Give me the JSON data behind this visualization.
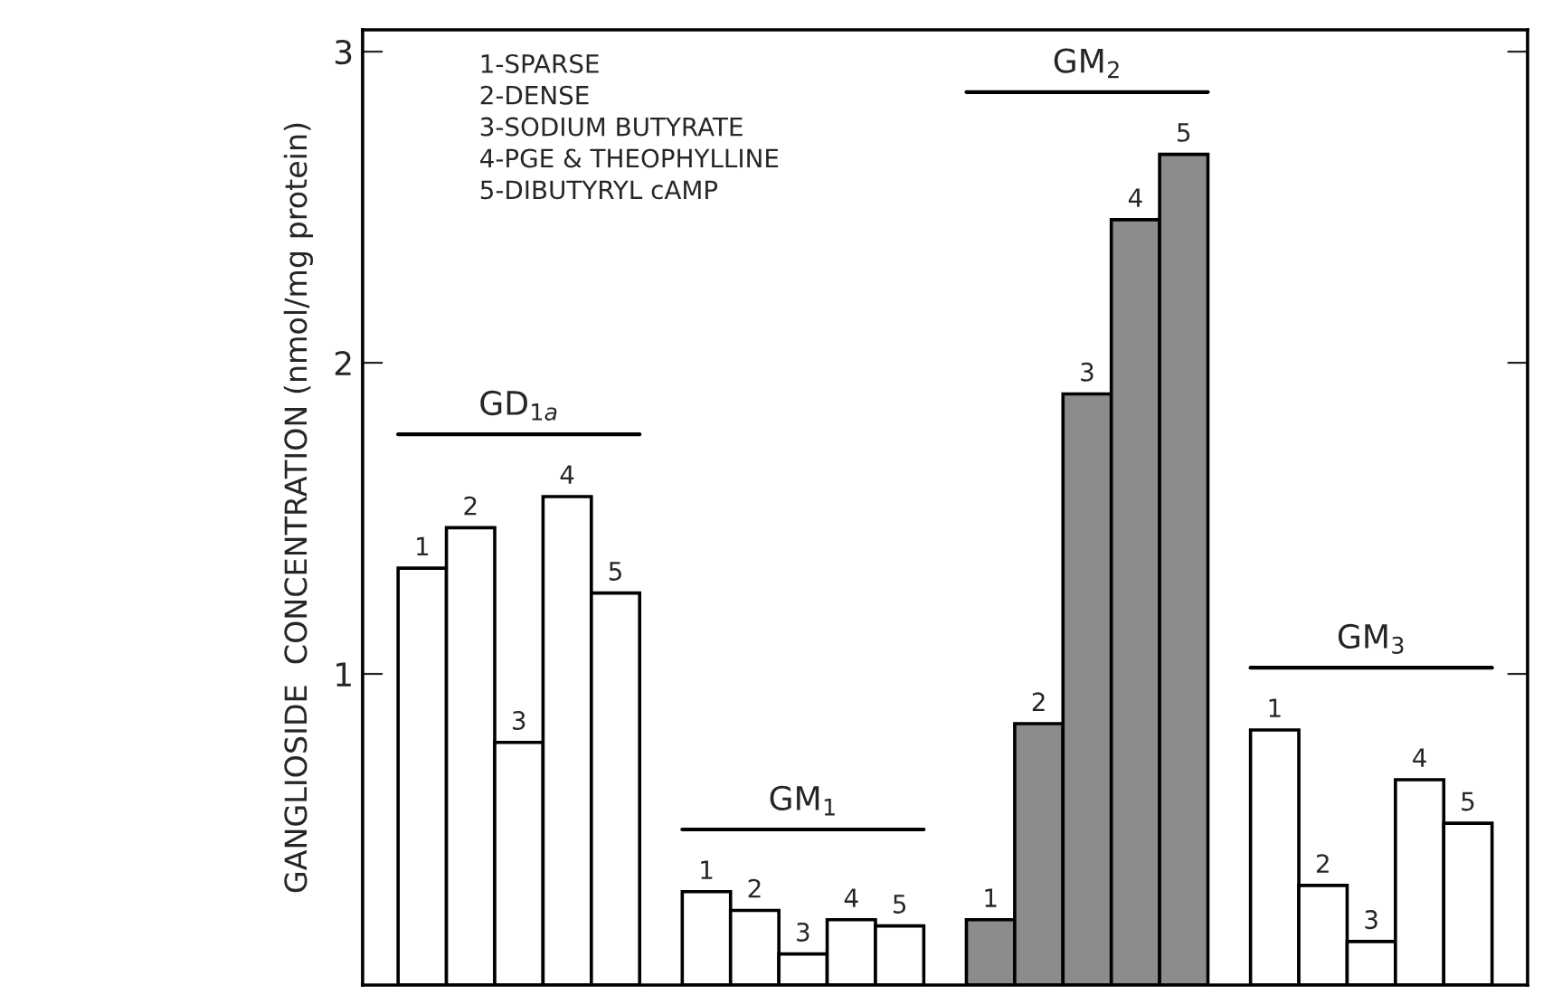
{
  "chart_data": {
    "type": "bar",
    "ylabel": "GANGLIOSIDE  CONCENTRATION (nmol/mg protein)",
    "categories": [
      "GD$_{1a}$",
      "GM$_{1}$",
      "GM$_{2}$",
      "GM$_{3}$"
    ],
    "series": [
      {
        "colors": [
          "#ffffff",
          "#ffffff",
          "#8c8c8c",
          "#ffffff"
        ],
        "values": [
          1.34,
          0.3,
          0.21,
          0.82
        ]
      },
      {
        "colors": [
          "#ffffff",
          "#ffffff",
          "#8c8c8c",
          "#ffffff"
        ],
        "values": [
          1.47,
          0.24,
          0.84,
          0.32
        ]
      },
      {
        "colors": [
          "#ffffff",
          "#ffffff",
          "#8c8c8c",
          "#ffffff"
        ],
        "values": [
          0.78,
          0.1,
          1.9,
          0.14
        ]
      },
      {
        "colors": [
          "#ffffff",
          "#ffffff",
          "#8c8c8c",
          "#ffffff"
        ],
        "values": [
          1.57,
          0.21,
          2.46,
          0.66
        ]
      },
      {
        "colors": [
          "#ffffff",
          "#ffffff",
          "#8c8c8c",
          "#ffffff"
        ],
        "values": [
          1.26,
          0.19,
          2.67,
          0.52
        ]
      }
    ],
    "annotations": [
      "1-SPARSE",
      "2-DENSE",
      "3-SODIUM BUTYRATE",
      "4-PGE & THEOPHYLLINE",
      "5-DIBUTYRYL cAMP",
      "1",
      "2",
      "3",
      "4",
      "5",
      "1",
      "2",
      "3",
      "4",
      "5",
      "1",
      "2",
      "3",
      "4",
      "5",
      "1",
      "2",
      "3",
      "4",
      "5"
    ],
    "ylim": [
      0,
      3.07
    ],
    "yticks": [
      1,
      2,
      3
    ],
    "tick_labels": "y",
    "grid": false
  }
}
